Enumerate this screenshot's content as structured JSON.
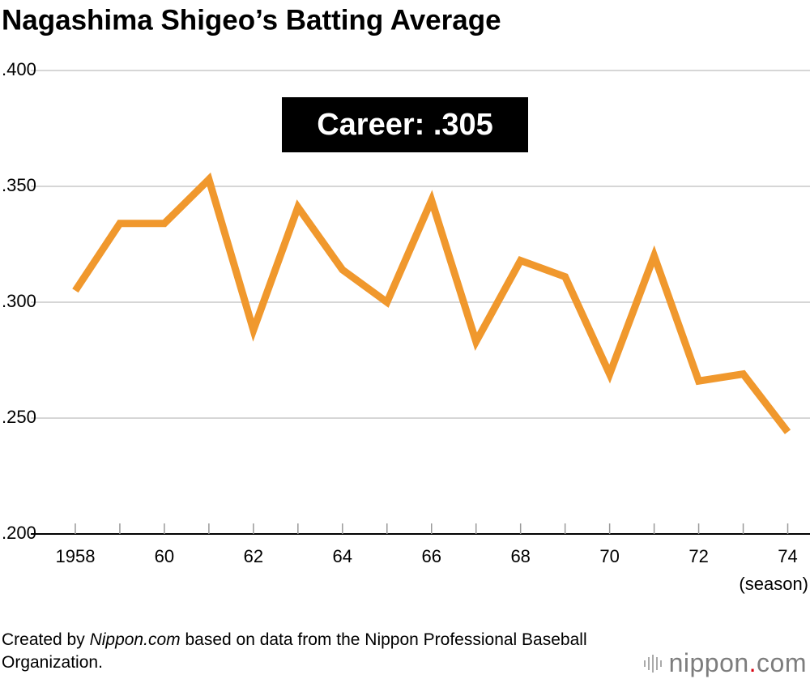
{
  "chart_data": {
    "type": "line",
    "title": "Nagashima Shigeo’s Batting Average",
    "x": [
      1958,
      1959,
      1960,
      1961,
      1962,
      1963,
      1964,
      1965,
      1966,
      1967,
      1968,
      1969,
      1970,
      1971,
      1972,
      1973,
      1974
    ],
    "series": [
      {
        "name": "Batting average",
        "color": "#f0982d",
        "values": [
          0.305,
          0.334,
          0.334,
          0.353,
          0.288,
          0.341,
          0.314,
          0.3,
          0.344,
          0.283,
          0.318,
          0.311,
          0.269,
          0.32,
          0.266,
          0.269,
          0.244
        ]
      }
    ],
    "xlim": [
      1957,
      1974.5
    ],
    "xticks": [
      1958,
      {
        "value": 1960,
        "label": "60"
      },
      {
        "value": 1962,
        "label": "62"
      },
      {
        "value": 1964,
        "label": "64"
      },
      {
        "value": 1966,
        "label": "66"
      },
      {
        "value": 1968,
        "label": "68"
      },
      {
        "value": 1970,
        "label": "70"
      },
      {
        "value": 1972,
        "label": "72"
      },
      {
        "value": 1974,
        "label": "74"
      }
    ],
    "xminorticks": [
      1959,
      1961,
      1963,
      1965,
      1967,
      1969,
      1971,
      1973
    ],
    "xlabel": "(season)",
    "ylim": [
      0.2,
      0.4
    ],
    "yticks": [
      {
        "value": 0.2,
        "label": ".200"
      },
      {
        "value": 0.25,
        "label": ".250"
      },
      {
        "value": 0.3,
        "label": ".300"
      },
      {
        "value": 0.35,
        "label": ".350"
      },
      {
        "value": 0.4,
        "label": ".400"
      }
    ],
    "grid": true,
    "annotation": "Career: .305"
  },
  "footer": {
    "source": [
      "Created by ",
      "Nippon.com",
      " based on data from the Nippon Professional Baseball Organization."
    ],
    "logo": [
      "nippon",
      ".",
      "com"
    ]
  }
}
